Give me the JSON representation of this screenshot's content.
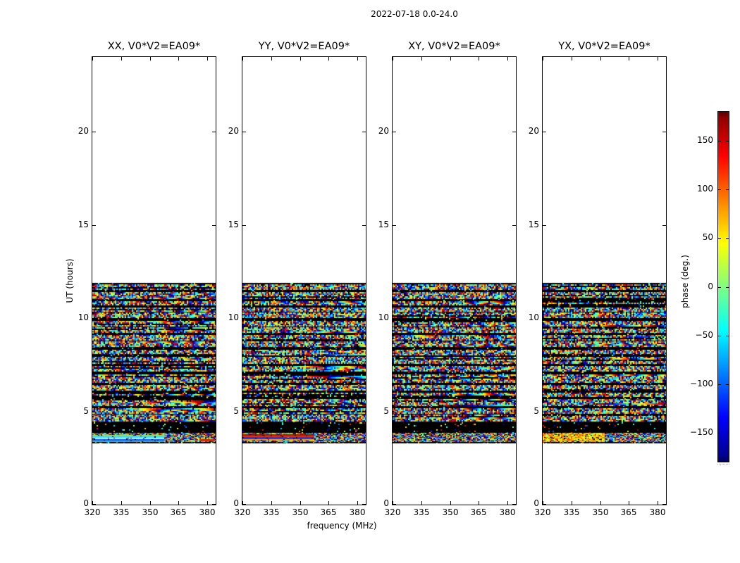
{
  "chart_data": {
    "type": "heatmap",
    "title": "2022-07-18 0.0-24.0",
    "xlabel": "frequency (MHz)",
    "ylabel": "UT (hours)",
    "panels": [
      {
        "title": "XX, V0*V2=EA09*"
      },
      {
        "title": "YY, V0*V2=EA09*"
      },
      {
        "title": "XY, V0*V2=EA09*"
      },
      {
        "title": "YX, V0*V2=EA09*"
      }
    ],
    "x_ticks": [
      320,
      335,
      350,
      365,
      380
    ],
    "x_tick_labels": [
      "320",
      "335",
      "350",
      "365",
      "380"
    ],
    "xlim": [
      320,
      384.3
    ],
    "y_ticks": [
      0,
      5,
      10,
      15,
      20
    ],
    "y_tick_labels": [
      "0",
      "5",
      "10",
      "15",
      "20"
    ],
    "ylim": [
      0,
      24
    ],
    "grid": false,
    "colormap": "jet",
    "value_range_deg": [
      -180,
      180
    ],
    "data_coverage_ut": [
      3.3,
      11.9
    ],
    "colorbar": {
      "label": "phase (deg.)",
      "ticks": [
        150,
        100,
        50,
        0,
        -50,
        -100,
        -150
      ],
      "tick_labels": [
        "150",
        "100",
        "50",
        "0",
        "−50",
        "−100",
        "−150"
      ],
      "position": "right"
    },
    "content_note": "Speckled interferometric fringe-phase rasters spanning the full ±180° color range, arranged in horizontal scan bands separated by dark gaps between UT≈3.3 and UT≈11.9; white (no data) elsewhere. Bottom scan of XX shows a smooth cyan/blue feature and of YY a smooth red→blue feature over the left ~58% of the band."
  }
}
